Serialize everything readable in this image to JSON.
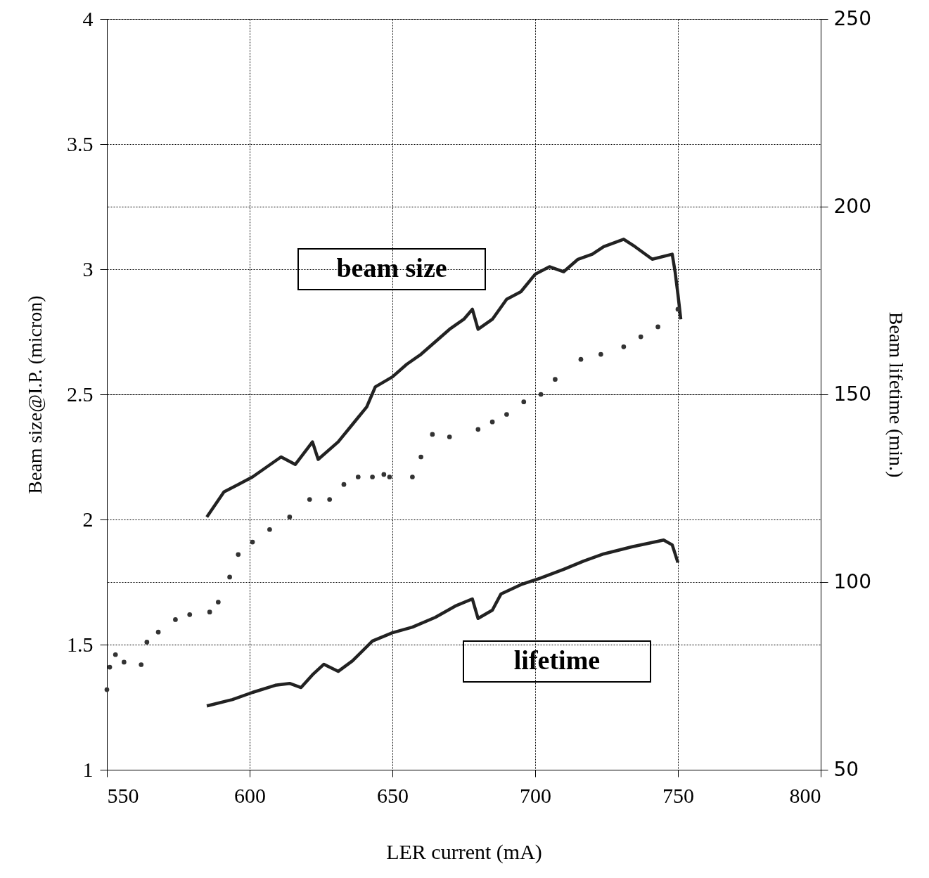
{
  "chart_data": {
    "type": "line",
    "xlabel": "LER current (mA)",
    "ylabel": "Beam size@I.P. (micron)",
    "y2label": "Beam lifetime (min.)",
    "xlim": [
      550,
      800
    ],
    "xticks": [
      550,
      600,
      650,
      700,
      750,
      800
    ],
    "ylim": [
      1,
      4
    ],
    "yticks": [
      1,
      1.5,
      2,
      2.5,
      3,
      3.5,
      4
    ],
    "y2lim": [
      50,
      250
    ],
    "y2ticks": [
      50,
      100,
      150,
      200,
      250
    ],
    "grid": true,
    "annotations": [
      "beam size",
      "lifetime"
    ],
    "series": [
      {
        "color": "#222222",
        "x": [
          585,
          591,
          596,
          601,
          606,
          611,
          616,
          622,
          624,
          631,
          636,
          641,
          644,
          650,
          655,
          660,
          665,
          670,
          675,
          678,
          680,
          685,
          690,
          695,
          700,
          705,
          710,
          715,
          720,
          724,
          731,
          735,
          741,
          748,
          749,
          750,
          751
        ],
        "values": [
          2.01,
          2.11,
          2.14,
          2.17,
          2.21,
          2.25,
          2.22,
          2.31,
          2.24,
          2.31,
          2.38,
          2.45,
          2.53,
          2.57,
          2.62,
          2.66,
          2.71,
          2.76,
          2.8,
          2.84,
          2.76,
          2.8,
          2.88,
          2.91,
          2.98,
          3.01,
          2.99,
          3.04,
          3.06,
          3.09,
          3.12,
          3.09,
          3.04,
          3.06,
          2.99,
          2.9,
          2.8
        ]
      },
      {
        "type": "scatter",
        "color": "#333333",
        "x": [
          550,
          551,
          553,
          556,
          562,
          564,
          568,
          574,
          579,
          586,
          589,
          593,
          596,
          601,
          607,
          614,
          621,
          628,
          633,
          638,
          643,
          647,
          649,
          657,
          660,
          664,
          670,
          680,
          685,
          690,
          696,
          702,
          707,
          716,
          723,
          731,
          737,
          743,
          750
        ],
        "values": [
          1.32,
          1.41,
          1.46,
          1.43,
          1.42,
          1.51,
          1.55,
          1.6,
          1.62,
          1.63,
          1.67,
          1.77,
          1.86,
          1.91,
          1.96,
          2.01,
          2.08,
          2.08,
          2.14,
          2.17,
          2.17,
          2.18,
          2.17,
          2.17,
          2.25,
          2.34,
          2.33,
          2.36,
          2.39,
          2.42,
          2.47,
          2.5,
          2.56,
          2.64,
          2.66,
          2.69,
          2.73,
          2.77,
          2.84
        ]
      },
      {
        "axis": "y2",
        "color": "#222222",
        "x": [
          585,
          594,
          601,
          609,
          614,
          618,
          622,
          626,
          631,
          636,
          643,
          650,
          657,
          665,
          672,
          678,
          680,
          685,
          688,
          695,
          702,
          710,
          717,
          724,
          734,
          745,
          748,
          750
        ],
        "values": [
          67,
          68.7,
          70.6,
          72.5,
          73,
          71.9,
          75.3,
          78.1,
          76.2,
          79,
          84.3,
          86.5,
          88,
          90.6,
          93.6,
          95.5,
          90.3,
          92.5,
          96.8,
          99.3,
          101.1,
          103.4,
          105.6,
          107.5,
          109.4,
          111.2,
          109.9,
          105.2
        ]
      }
    ]
  }
}
